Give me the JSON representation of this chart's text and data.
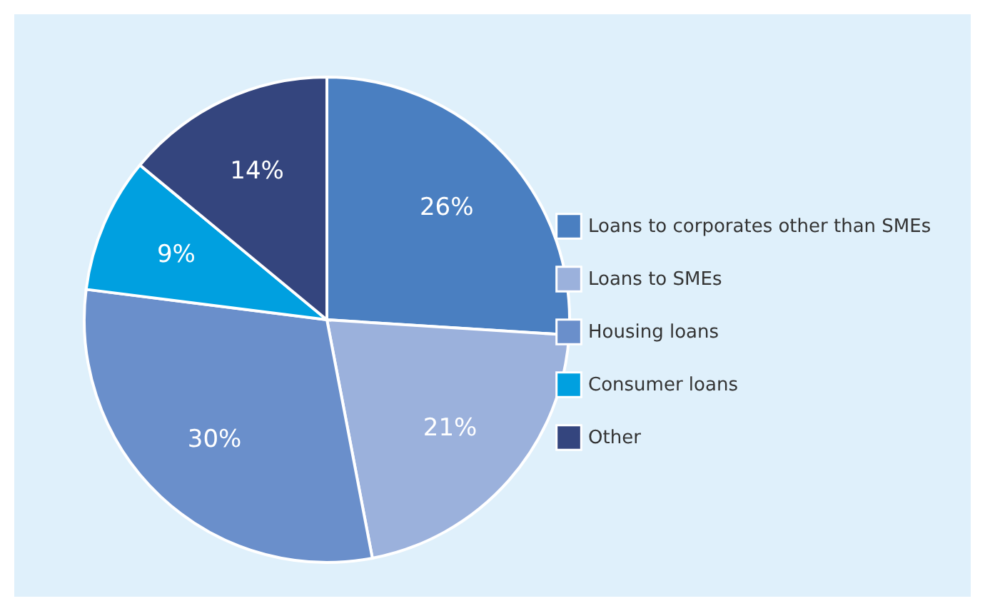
{
  "chart_data": {
    "type": "pie",
    "categories": [
      "Loans to corporates other than SMEs",
      "Loans to SMEs",
      "Housing loans",
      "Consumer loans",
      "Other"
    ],
    "values": [
      26,
      21,
      30,
      9,
      14
    ],
    "colors": [
      "#4a7fc1",
      "#9bb1dc",
      "#6a8fcb",
      "#00a0e0",
      "#34457e"
    ],
    "value_labels": [
      "26%",
      "21%",
      "30%",
      "9%",
      "14%"
    ],
    "legend": "right"
  }
}
